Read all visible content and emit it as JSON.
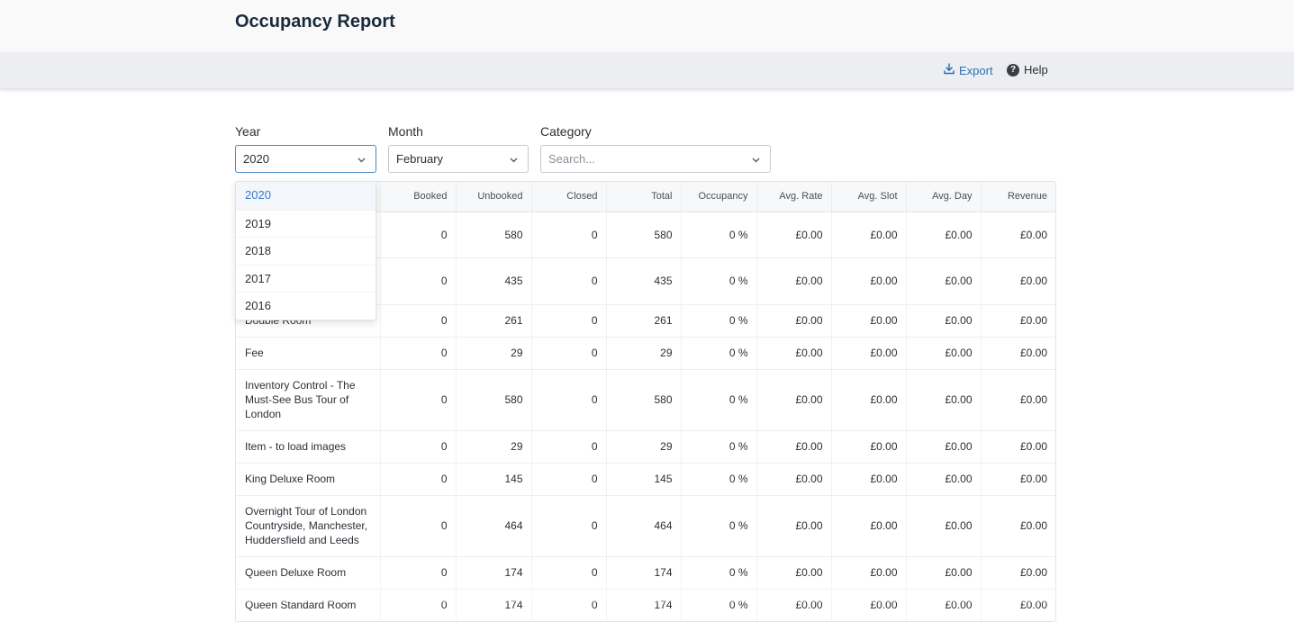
{
  "page": {
    "title": "Occupancy Report"
  },
  "toolbar": {
    "export_label": "Export",
    "help_label": "Help"
  },
  "filters": {
    "year": {
      "label": "Year",
      "value": "2020"
    },
    "month": {
      "label": "Month",
      "value": "February"
    },
    "category": {
      "label": "Category",
      "placeholder": "Search..."
    }
  },
  "year_dropdown": {
    "options": [
      "2020",
      "2019",
      "2018",
      "2017",
      "2016"
    ],
    "selected": "2020"
  },
  "table": {
    "columns": [
      "",
      "Booked",
      "Unbooked",
      "Closed",
      "Total",
      "Occupancy",
      "Avg. Rate",
      "Avg. Slot",
      "Avg. Day",
      "Revenue"
    ],
    "rows": [
      {
        "name": "",
        "booked": "0",
        "unbooked": "580",
        "closed": "0",
        "total": "580",
        "occupancy": "0 %",
        "avg_rate": "£0.00",
        "avg_slot": "£0.00",
        "avg_day": "£0.00",
        "revenue": "£0.00"
      },
      {
        "name": "",
        "booked": "0",
        "unbooked": "435",
        "closed": "0",
        "total": "435",
        "occupancy": "0 %",
        "avg_rate": "£0.00",
        "avg_slot": "£0.00",
        "avg_day": "£0.00",
        "revenue": "£0.00"
      },
      {
        "name": "Double Room",
        "booked": "0",
        "unbooked": "261",
        "closed": "0",
        "total": "261",
        "occupancy": "0 %",
        "avg_rate": "£0.00",
        "avg_slot": "£0.00",
        "avg_day": "£0.00",
        "revenue": "£0.00"
      },
      {
        "name": "Fee",
        "booked": "0",
        "unbooked": "29",
        "closed": "0",
        "total": "29",
        "occupancy": "0 %",
        "avg_rate": "£0.00",
        "avg_slot": "£0.00",
        "avg_day": "£0.00",
        "revenue": "£0.00"
      },
      {
        "name": "Inventory Control - The Must-See Bus Tour of London",
        "booked": "0",
        "unbooked": "580",
        "closed": "0",
        "total": "580",
        "occupancy": "0 %",
        "avg_rate": "£0.00",
        "avg_slot": "£0.00",
        "avg_day": "£0.00",
        "revenue": "£0.00"
      },
      {
        "name": "Item - to load images",
        "booked": "0",
        "unbooked": "29",
        "closed": "0",
        "total": "29",
        "occupancy": "0 %",
        "avg_rate": "£0.00",
        "avg_slot": "£0.00",
        "avg_day": "£0.00",
        "revenue": "£0.00"
      },
      {
        "name": "King Deluxe Room",
        "booked": "0",
        "unbooked": "145",
        "closed": "0",
        "total": "145",
        "occupancy": "0 %",
        "avg_rate": "£0.00",
        "avg_slot": "£0.00",
        "avg_day": "£0.00",
        "revenue": "£0.00"
      },
      {
        "name": "Overnight Tour of London Countryside, Manchester, Huddersfield and Leeds",
        "booked": "0",
        "unbooked": "464",
        "closed": "0",
        "total": "464",
        "occupancy": "0 %",
        "avg_rate": "£0.00",
        "avg_slot": "£0.00",
        "avg_day": "£0.00",
        "revenue": "£0.00"
      },
      {
        "name": "Queen Deluxe Room",
        "booked": "0",
        "unbooked": "174",
        "closed": "0",
        "total": "174",
        "occupancy": "0 %",
        "avg_rate": "£0.00",
        "avg_slot": "£0.00",
        "avg_day": "£0.00",
        "revenue": "£0.00"
      },
      {
        "name": "Queen Standard Room",
        "booked": "0",
        "unbooked": "174",
        "closed": "0",
        "total": "174",
        "occupancy": "0 %",
        "avg_rate": "£0.00",
        "avg_slot": "£0.00",
        "avg_day": "£0.00",
        "revenue": "£0.00"
      }
    ]
  },
  "icons": {
    "export": "download-icon",
    "help": "help-circle-icon",
    "select": "chevron-down-icon"
  },
  "colors": {
    "accent": "#2f6fb3",
    "selected_option": "#3a7bc8",
    "header_bg": "#f9f9fa",
    "toolbar_bg": "#eceef1"
  }
}
